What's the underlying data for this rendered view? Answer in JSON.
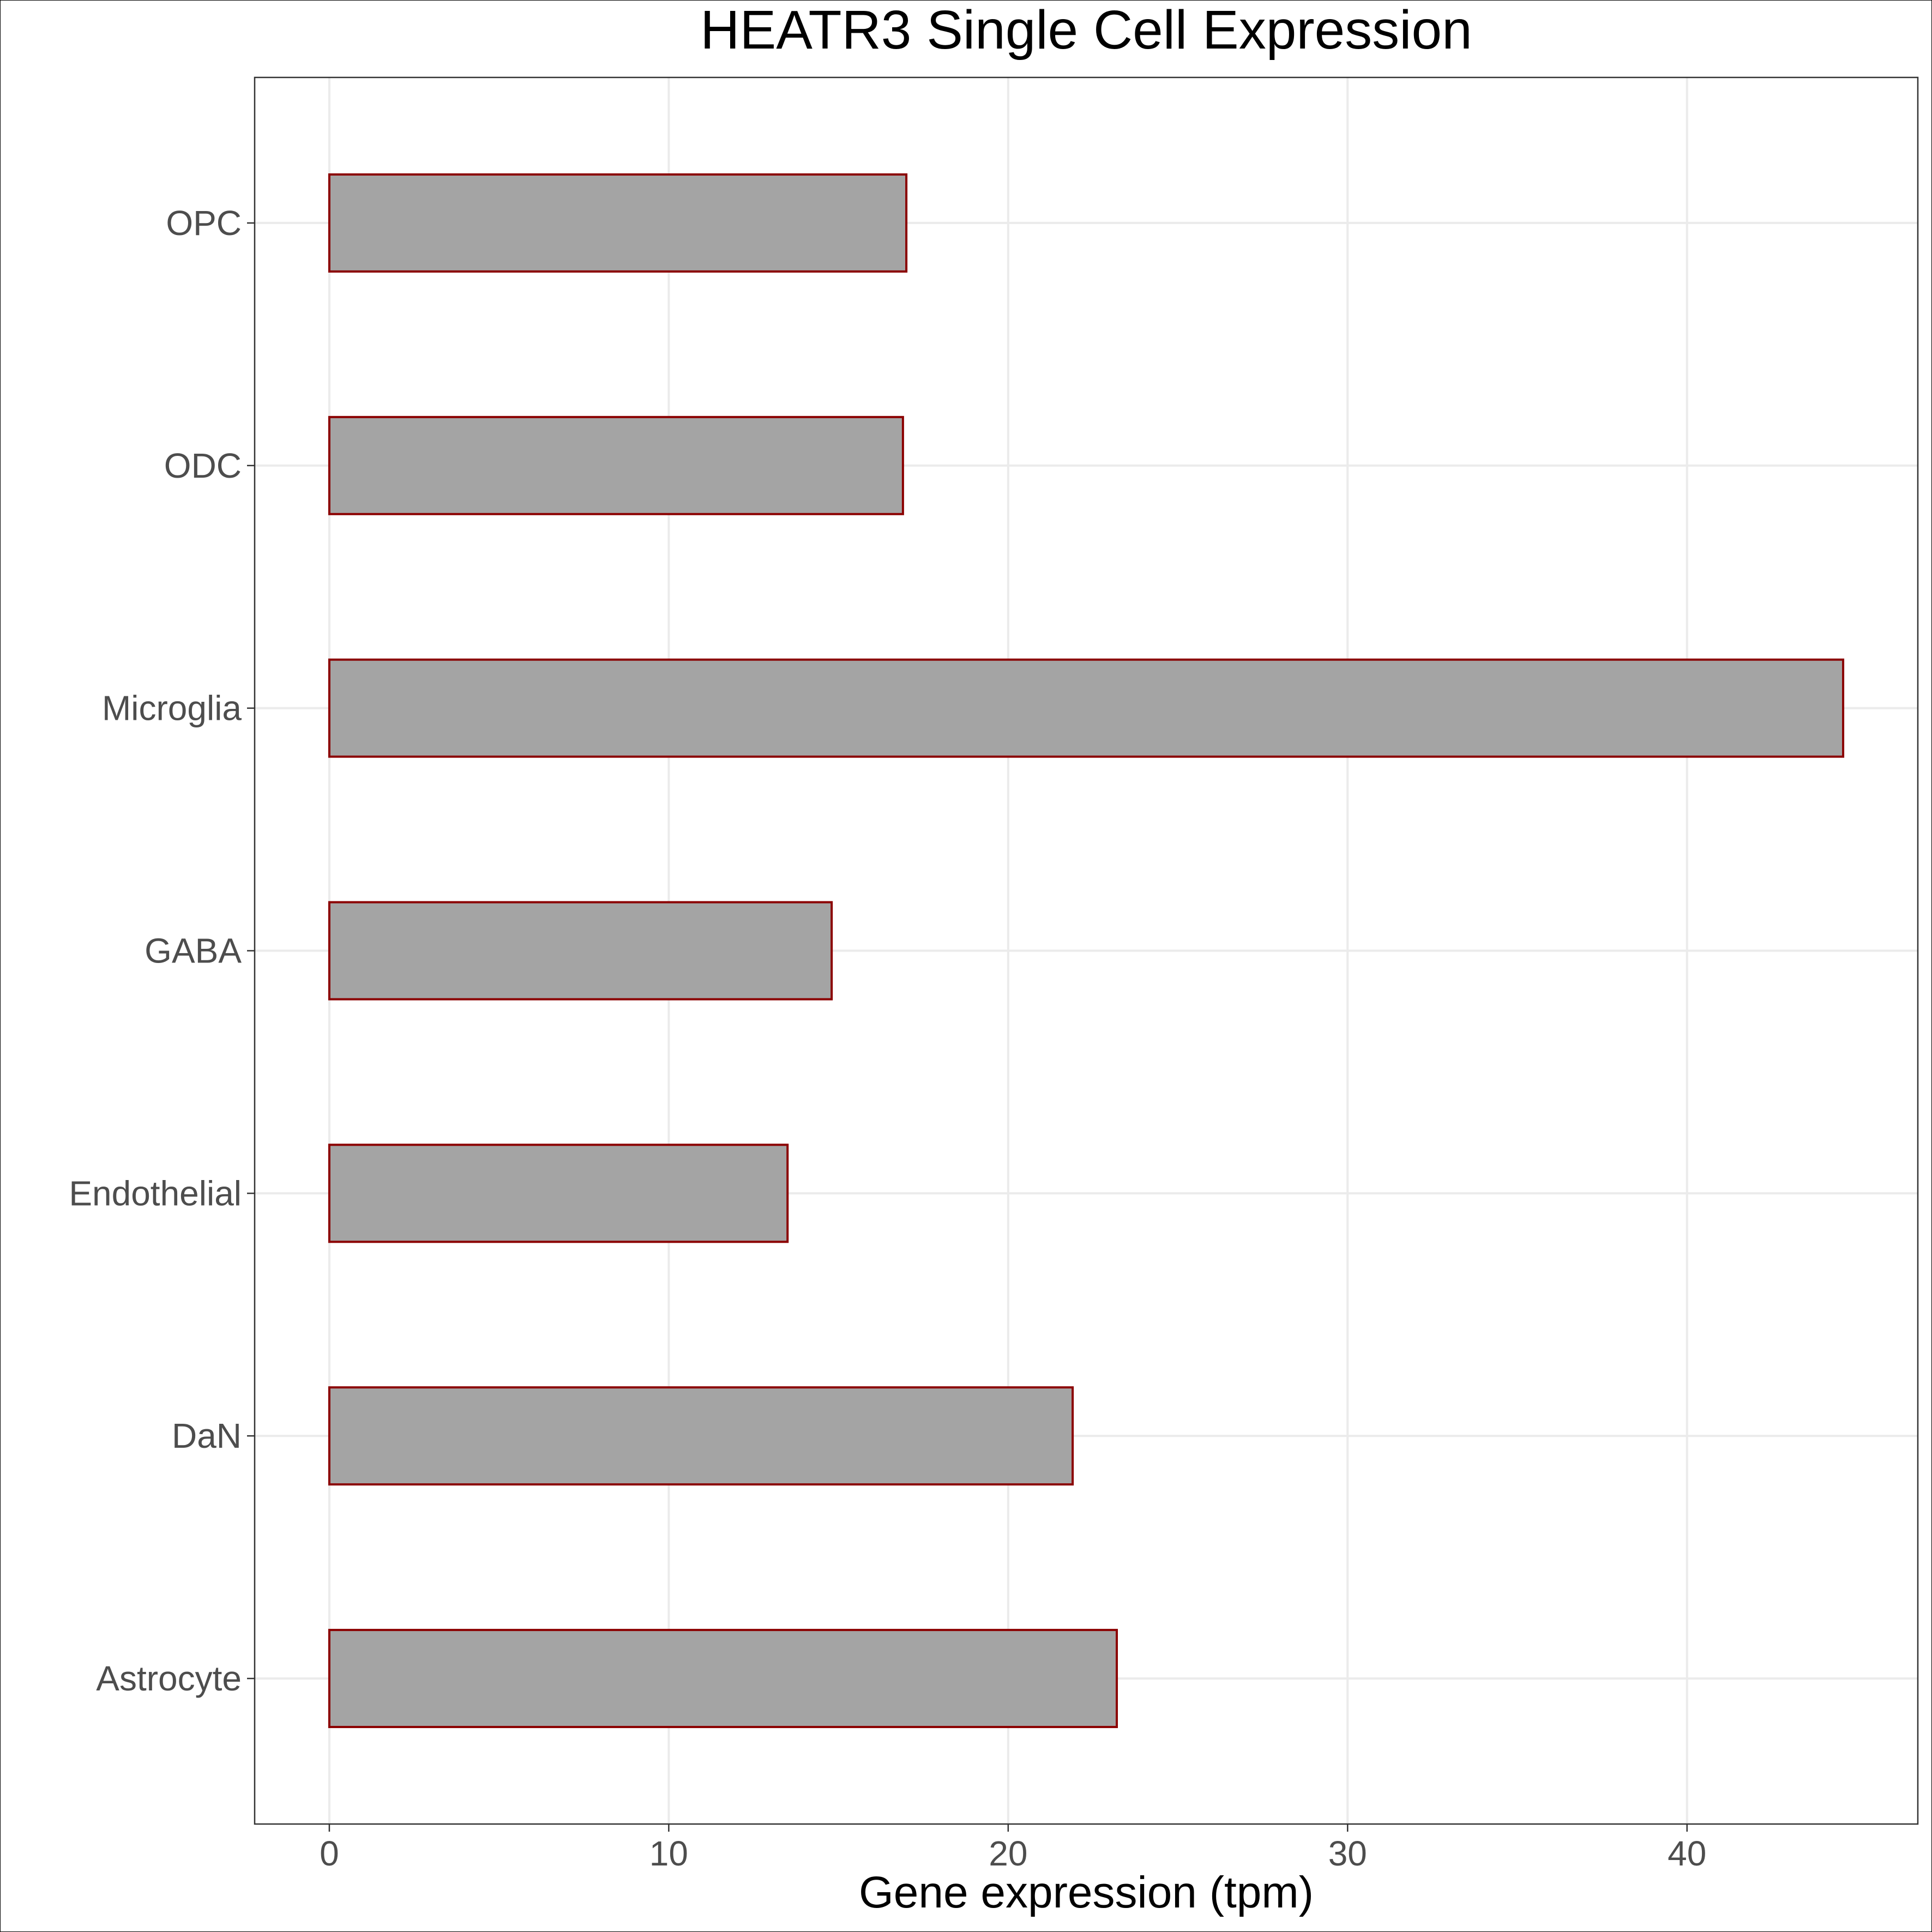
{
  "chart_data": {
    "type": "bar",
    "orientation": "horizontal",
    "title": "HEATR3 Single Cell Expression",
    "xlabel": "Gene expression (tpm)",
    "ylabel": "",
    "categories": [
      "Astrocyte",
      "DaN",
      "Endothelial",
      "GABA",
      "Microglia",
      "ODC",
      "OPC"
    ],
    "values": [
      23.2,
      21.9,
      13.5,
      14.8,
      44.6,
      16.9,
      17.0
    ],
    "xlim": [
      -2.2,
      46.8
    ],
    "xticks": [
      0,
      10,
      20,
      30,
      40
    ],
    "xtick_labels": [
      "0",
      "10",
      "20",
      "30",
      "40"
    ],
    "grid": true,
    "colors": {
      "bar_fill": "#a4a4a4",
      "bar_stroke": "#8b0000",
      "grid": "#ebebeb",
      "panel_border": "#333333",
      "tick_text": "#4d4d4d"
    }
  }
}
